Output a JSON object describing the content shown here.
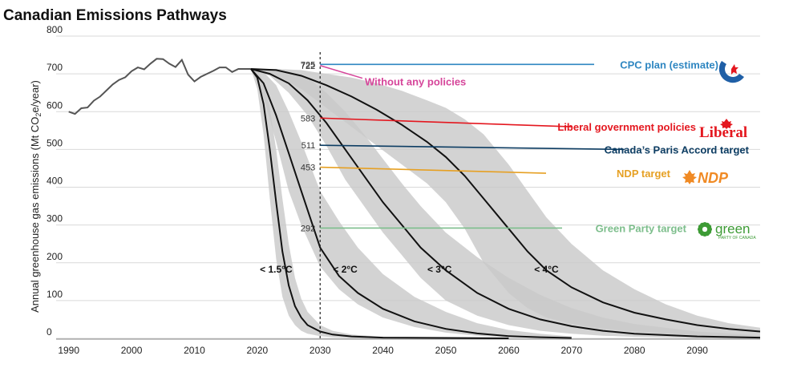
{
  "chart_data": {
    "type": "line",
    "title": "Canadian Emissions Pathways",
    "ylabel_main": "Annual greenhouse gas emissions (Mt CO",
    "ylabel_sub": "2",
    "ylabel_end": "e/year)",
    "xlim": [
      1988,
      2100
    ],
    "ylim": [
      0,
      800
    ],
    "x_ticks": [
      1990,
      2000,
      2010,
      2020,
      2030,
      2040,
      2050,
      2060,
      2070,
      2080,
      2090
    ],
    "y_ticks": [
      0,
      100,
      200,
      300,
      400,
      500,
      600,
      700,
      800
    ],
    "history": {
      "x": [
        1990,
        1991,
        1992,
        1993,
        1994,
        1995,
        1996,
        1997,
        1998,
        1999,
        2000,
        2001,
        2002,
        2003,
        2004,
        2005,
        2006,
        2007,
        2008,
        2009,
        2010,
        2011,
        2012,
        2013,
        2014,
        2015,
        2016,
        2017,
        2018,
        2019
      ],
      "y": [
        600,
        594,
        609,
        611,
        629,
        640,
        656,
        672,
        684,
        691,
        707,
        717,
        712,
        727,
        740,
        739,
        727,
        718,
        737,
        698,
        680,
        692,
        700,
        708,
        717,
        717,
        705,
        713,
        713,
        713
      ]
    },
    "pathways": [
      {
        "label": "< 1.5°C",
        "label_x": 2023,
        "label_y": 182,
        "x": [
          2019,
          2020,
          2021,
          2022,
          2023,
          2024,
          2025,
          2026,
          2027,
          2028,
          2030,
          2032,
          2035,
          2040,
          2050,
          2060
        ],
        "y": [
          713,
          690,
          620,
          500,
          360,
          230,
          140,
          85,
          55,
          35,
          18,
          10,
          5,
          2,
          1,
          0
        ],
        "band_upper": [
          713,
          710,
          680,
          610,
          500,
          370,
          250,
          160,
          105,
          70,
          35,
          20,
          10,
          4,
          2,
          1
        ],
        "band_lower": [
          713,
          660,
          540,
          370,
          210,
          110,
          60,
          35,
          20,
          12,
          6,
          3,
          1,
          0,
          0,
          0
        ]
      },
      {
        "label": "< 2°C",
        "label_x": 2034,
        "label_y": 182,
        "x": [
          2019,
          2021,
          2023,
          2025,
          2027,
          2030,
          2033,
          2036,
          2040,
          2045,
          2050,
          2055,
          2060,
          2065,
          2070
        ],
        "y": [
          713,
          675,
          590,
          490,
          390,
          240,
          165,
          120,
          78,
          45,
          25,
          13,
          6,
          3,
          1
        ],
        "band_upper": [
          713,
          705,
          670,
          600,
          520,
          390,
          310,
          240,
          170,
          110,
          70,
          40,
          22,
          12,
          5
        ],
        "band_lower": [
          713,
          640,
          520,
          390,
          300,
          190,
          130,
          90,
          55,
          30,
          15,
          7,
          3,
          1,
          0
        ]
      },
      {
        "label": "< 3°C",
        "label_x": 2049,
        "label_y": 182,
        "x": [
          2019,
          2022,
          2025,
          2028,
          2031,
          2034,
          2037,
          2040,
          2043,
          2046,
          2050,
          2055,
          2060,
          2065,
          2070,
          2075,
          2080,
          2090,
          2100
        ],
        "y": [
          713,
          700,
          675,
          630,
          570,
          500,
          430,
          360,
          300,
          240,
          180,
          120,
          78,
          50,
          32,
          20,
          12,
          5,
          2
        ],
        "band_upper": [
          713,
          712,
          705,
          690,
          650,
          600,
          540,
          475,
          410,
          350,
          280,
          215,
          160,
          115,
          80,
          55,
          38,
          18,
          8
        ],
        "band_lower": [
          713,
          695,
          650,
          590,
          510,
          420,
          350,
          280,
          220,
          160,
          100,
          60,
          35,
          20,
          12,
          7,
          4,
          1,
          0
        ]
      },
      {
        "label": "< 4°C",
        "label_x": 2066,
        "label_y": 182,
        "x": [
          2019,
          2023,
          2027,
          2031,
          2035,
          2039,
          2043,
          2047,
          2050,
          2053,
          2056,
          2060,
          2063,
          2066,
          2070,
          2075,
          2080,
          2085,
          2090,
          2095,
          2100
        ],
        "y": [
          713,
          710,
          695,
          670,
          640,
          605,
          565,
          520,
          480,
          430,
          370,
          290,
          230,
          180,
          135,
          95,
          68,
          50,
          35,
          25,
          18
        ],
        "band_upper": [
          713,
          713,
          710,
          700,
          690,
          675,
          655,
          630,
          610,
          580,
          540,
          460,
          390,
          320,
          250,
          180,
          130,
          90,
          60,
          40,
          28
        ],
        "band_lower": [
          713,
          695,
          660,
          610,
          560,
          510,
          460,
          410,
          360,
          290,
          200,
          120,
          80,
          55,
          38,
          25,
          18,
          12,
          8,
          6,
          4
        ]
      }
    ],
    "reference_year": 2030,
    "targets": [
      {
        "label": "CPC plan (estimate)",
        "value": 725,
        "value_label": "725",
        "color": "#2e86c1",
        "logo": "cpc-logo",
        "label_y": 725
      },
      {
        "label": "Without any policies",
        "value": 722,
        "value_label": "722",
        "color": "#d6459a",
        "logo": "",
        "label_y": 680
      },
      {
        "label": "Liberal government policies",
        "value": 583,
        "value_label": "583",
        "color": "#e4171f",
        "logo": "liberal-logo",
        "label_y": 560
      },
      {
        "label": "Canada’s Paris Accord target",
        "value": 511,
        "value_label": "511",
        "color": "#0d3d63",
        "logo": "",
        "label_y": 500
      },
      {
        "label": "NDP target",
        "value": 453,
        "value_label": "453",
        "color": "#e6a023",
        "logo": "ndp-logo",
        "label_y": 437
      },
      {
        "label": "Green Party target",
        "value": 292,
        "value_label": "292",
        "color": "#7dbe8c",
        "logo": "green-logo",
        "label_y": 292
      }
    ],
    "logos": {
      "liberal": "Liberal",
      "ndp": "NDP",
      "green": "green",
      "green_sub": "PARTY OF CANADA"
    },
    "colors": {
      "band": "#c9c9c9",
      "history": "#555555",
      "pathway": "#111111",
      "grid": "#d9d9d9"
    },
    "grid": true
  }
}
